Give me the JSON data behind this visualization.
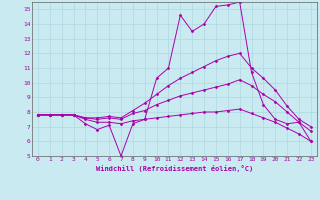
{
  "xlabel": "Windchill (Refroidissement éolien,°C)",
  "background_color": "#c8eaf0",
  "grid_color": "#b0d8e0",
  "line_color": "#aa00aa",
  "x_ticks": [
    0,
    1,
    2,
    3,
    4,
    5,
    6,
    7,
    8,
    9,
    10,
    11,
    12,
    13,
    14,
    15,
    16,
    17,
    18,
    19,
    20,
    21,
    22,
    23
  ],
  "ylim": [
    5,
    15.5
  ],
  "xlim": [
    -0.5,
    23.5
  ],
  "yticks": [
    5,
    6,
    7,
    8,
    9,
    10,
    11,
    12,
    13,
    14,
    15
  ],
  "series": [
    [
      7.8,
      7.8,
      7.8,
      7.8,
      7.2,
      6.8,
      7.1,
      5.0,
      7.2,
      7.5,
      10.3,
      11.0,
      14.6,
      13.5,
      14.0,
      15.2,
      15.3,
      15.5,
      10.7,
      8.5,
      7.5,
      7.2,
      7.3,
      6.0
    ],
    [
      7.8,
      7.8,
      7.8,
      7.8,
      7.6,
      7.6,
      7.7,
      7.6,
      8.1,
      8.6,
      9.2,
      9.8,
      10.3,
      10.7,
      11.1,
      11.5,
      11.8,
      12.0,
      11.0,
      10.3,
      9.5,
      8.4,
      7.5,
      7.0
    ],
    [
      7.8,
      7.8,
      7.8,
      7.8,
      7.6,
      7.5,
      7.6,
      7.5,
      7.9,
      8.1,
      8.5,
      8.8,
      9.1,
      9.3,
      9.5,
      9.7,
      9.9,
      10.2,
      9.8,
      9.2,
      8.7,
      8.0,
      7.3,
      6.7
    ],
    [
      7.8,
      7.8,
      7.8,
      7.8,
      7.5,
      7.3,
      7.3,
      7.2,
      7.4,
      7.5,
      7.6,
      7.7,
      7.8,
      7.9,
      8.0,
      8.0,
      8.1,
      8.2,
      7.9,
      7.6,
      7.3,
      6.9,
      6.5,
      6.0
    ]
  ]
}
